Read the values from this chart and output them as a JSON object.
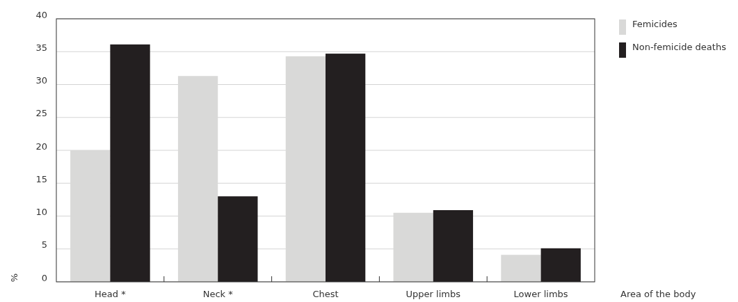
{
  "chart_data": {
    "type": "bar",
    "xlabel": "Area of the body",
    "ylabel": "%",
    "categories": [
      "Head *",
      "Neck *",
      "Chest",
      "Upper limbs",
      "Lower limbs"
    ],
    "series": [
      {
        "name": "Femicides",
        "color": "#d9d9d8",
        "values": [
          20,
          31.3,
          34.3,
          10.5,
          4.1
        ]
      },
      {
        "name": "Non-femicide deaths",
        "color": "#231f20",
        "values": [
          36.1,
          13,
          34.7,
          10.9,
          5.1
        ]
      }
    ],
    "ylim": [
      0,
      40
    ],
    "yticks": [
      0,
      5,
      10,
      15,
      20,
      25,
      30,
      35,
      40
    ],
    "grid": "y",
    "legend": "top right"
  }
}
